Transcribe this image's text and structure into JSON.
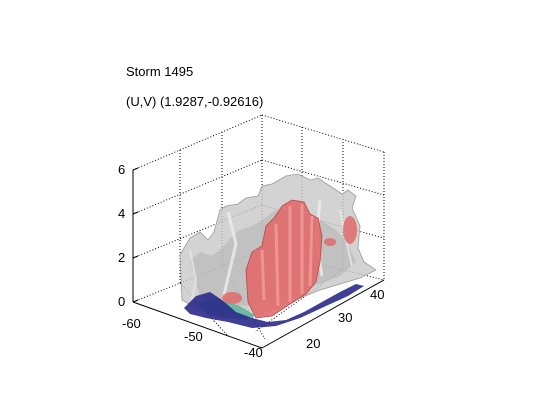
{
  "figure": {
    "title_line1": "Storm 1495",
    "title_line2": "(U,V) (1.9287,-0.92616)",
    "background": "#ffffff"
  },
  "axes": {
    "z_ticks": [
      "0",
      "2",
      "4",
      "6"
    ],
    "x_ticks": [
      "-60",
      "-50",
      "-40"
    ],
    "y_ticks": [
      "20",
      "30",
      "40"
    ],
    "zlim": [
      0,
      6
    ],
    "xlim": [
      -62,
      -38
    ],
    "ylim": [
      16,
      44
    ],
    "grid": true,
    "box": "dotted"
  },
  "surfaces": [
    {
      "name": "outer-isosurface",
      "color": "#c8c8c8"
    },
    {
      "name": "core-isosurface",
      "color": "#e06a6a"
    },
    {
      "name": "base-isosurface",
      "color": "#2a2a8a"
    },
    {
      "name": "teal-isosurface",
      "color": "#5fb39a"
    }
  ]
}
